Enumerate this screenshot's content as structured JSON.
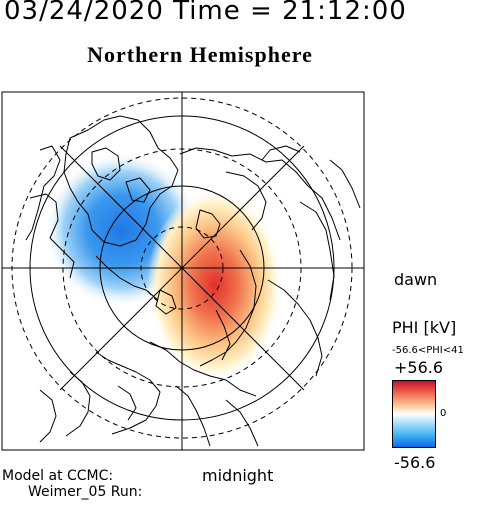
{
  "header": {
    "datetime": "03/24/2020 Time = 21:12:00",
    "title": "Northern Hemisphere"
  },
  "map": {
    "local_time_labels": {
      "dawn": "dawn",
      "midnight": "midnight"
    },
    "potential_pattern": {
      "dawn_cell": "positive",
      "dusk_cell": "negative"
    }
  },
  "colorbar": {
    "label": "PHI [kV]",
    "range_text": "-56.6<PHI<41",
    "max_label": "+56.6",
    "zero_label": "0",
    "min_label": "-56.6",
    "colors": {
      "max": "#c4102a",
      "mid": "#ffffff",
      "min": "#0a6be6"
    }
  },
  "footer": {
    "model_line": "Model at CCMC:",
    "run_line": "Weimer_05 Run:"
  }
}
